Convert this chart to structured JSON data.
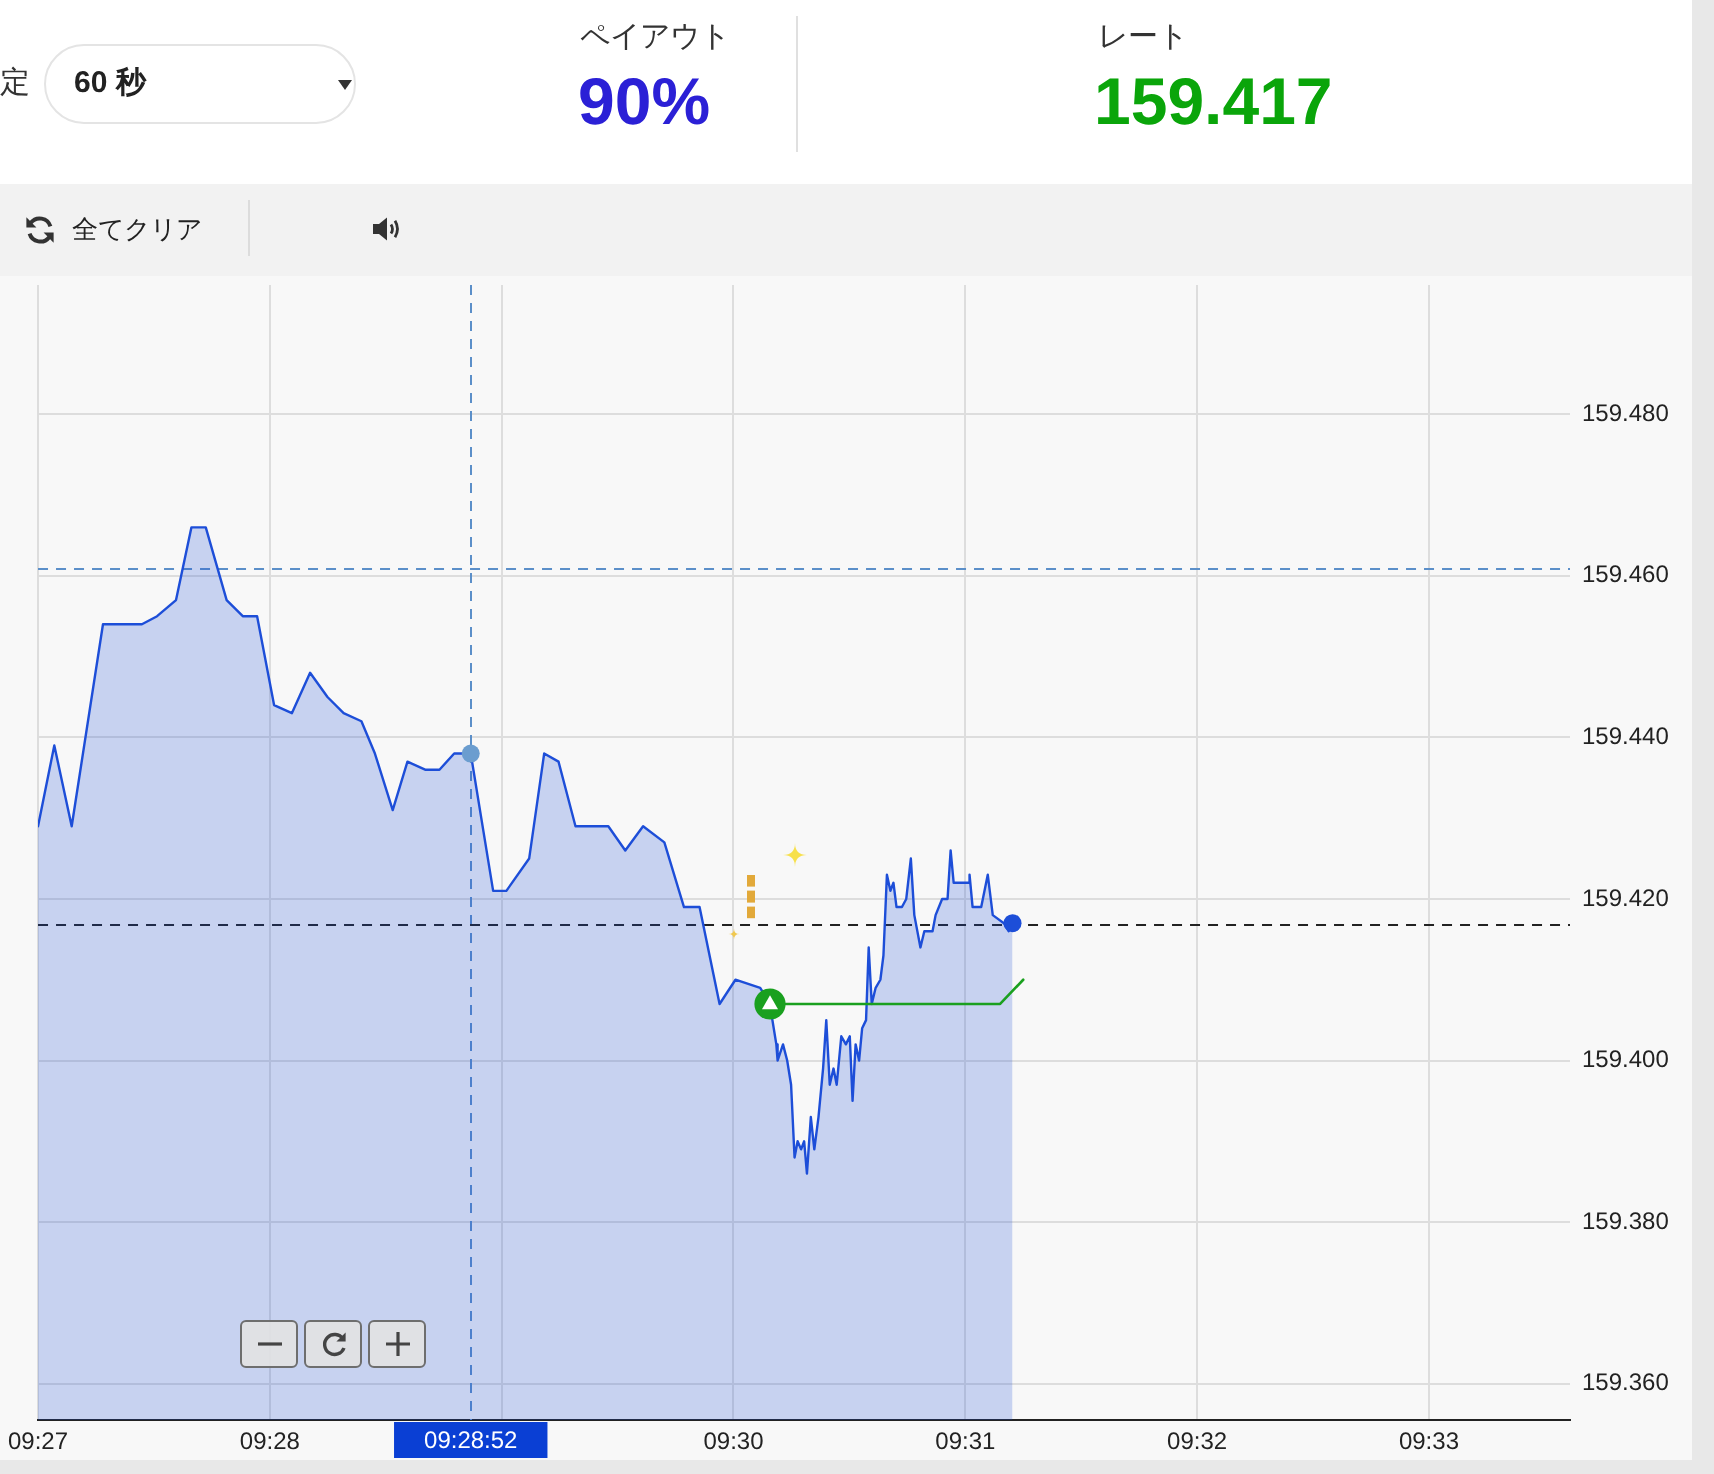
{
  "chart_data": {
    "type": "area",
    "annotations": [
      "定",
      "60 秒",
      "ペイアウト",
      "90%",
      "レート",
      "159.417",
      "全てクリア"
    ],
    "series": [
      {
        "color": "#1d4ed8",
        "x": [
          9.45,
          9.45117,
          9.45242,
          9.45467,
          9.45747,
          9.45856,
          9.45992,
          9.46103,
          9.46206,
          9.46356,
          9.46472,
          9.46575,
          9.46697,
          9.46825,
          9.46956,
          9.47081,
          9.47197,
          9.47325,
          9.47422,
          9.4755,
          9.47656,
          9.47783,
          9.47886,
          9.47992,
          9.48111,
          9.48272,
          9.48367,
          9.48531,
          9.48639,
          9.48742,
          9.48864,
          9.491,
          9.49222,
          9.4935,
          9.49503,
          9.49644,
          9.49756,
          9.499,
          9.50014,
          9.50192,
          9.50261,
          9.50308,
          9.50317,
          9.50356,
          9.50386,
          9.50414,
          9.50439,
          9.50461,
          9.50486,
          9.50508,
          9.50528,
          9.50556,
          9.50581,
          9.50611,
          9.50644,
          9.50667,
          9.50692,
          9.50719,
          9.50742,
          9.50775,
          9.50808,
          9.50836,
          9.50856,
          9.50878,
          9.50903,
          9.50925,
          9.50953,
          9.50972,
          9.50994,
          9.51022,
          9.51056,
          9.51078,
          9.51103,
          9.51128,
          9.5115,
          9.51172,
          9.51211,
          9.51242,
          9.51275,
          9.513,
          9.51344,
          9.51372,
          9.51431,
          9.51453,
          9.515,
          9.51539,
          9.51561,
          9.51583,
          9.51689,
          9.51697,
          9.51719,
          9.51781,
          9.51828,
          9.51864,
          9.51944,
          9.51978,
          9.52006
        ],
        "values": [
          159.429,
          159.439,
          159.429,
          159.454,
          159.454,
          159.455,
          159.457,
          159.466,
          159.466,
          159.457,
          159.455,
          159.455,
          159.444,
          159.443,
          159.448,
          159.445,
          159.443,
          159.442,
          159.438,
          159.431,
          159.437,
          159.436,
          159.436,
          159.438,
          159.438,
          159.421,
          159.421,
          159.425,
          159.438,
          159.437,
          159.429,
          159.429,
          159.426,
          159.429,
          159.427,
          159.419,
          159.419,
          159.407,
          159.41,
          159.409,
          159.407,
          159.402,
          159.4,
          159.402,
          159.4,
          159.397,
          159.388,
          159.39,
          159.389,
          159.39,
          159.386,
          159.393,
          159.389,
          159.393,
          159.399,
          159.405,
          159.397,
          159.399,
          159.397,
          159.403,
          159.402,
          159.403,
          159.395,
          159.402,
          159.4,
          159.404,
          159.405,
          159.414,
          159.407,
          159.409,
          159.41,
          159.413,
          159.423,
          159.421,
          159.422,
          159.419,
          159.419,
          159.42,
          159.425,
          159.418,
          159.414,
          159.416,
          159.416,
          159.418,
          159.42,
          159.42,
          159.426,
          159.422,
          159.422,
          159.423,
          159.419,
          159.419,
          159.423,
          159.418,
          159.417,
          159.416,
          159.417
        ]
      },
      {
        "type": "line",
        "color": "#1aa01f",
        "x": [
          9.50261,
          9.51917,
          9.52083
        ],
        "values": [
          159.407,
          159.407,
          159.41
        ]
      },
      {
        "type": "scatter",
        "color": "#6b9dcf",
        "marker": "circle",
        "x": [
          9.48111
        ],
        "values": [
          159.438
        ]
      },
      {
        "type": "scatter",
        "color": "#1d4ed8",
        "marker": "circle",
        "x": [
          9.52006
        ],
        "values": [
          159.417
        ]
      }
    ],
    "xlim": [
      9.45,
      9.56014
    ],
    "xticks": [
      {
        "value": 9.45,
        "label": "09:27"
      },
      {
        "value": 9.466667,
        "label": "09:28"
      },
      {
        "value": 9.483333,
        "label": null
      },
      {
        "value": 9.5,
        "label": "09:30"
      },
      {
        "value": 9.516667,
        "label": "09:31"
      },
      {
        "value": 9.533333,
        "label": "09:32"
      },
      {
        "value": 9.55,
        "label": "09:33"
      }
    ],
    "ylim": [
      159.3555,
      159.496
    ],
    "yticks": [
      {
        "value": 159.36,
        "label": "159.360"
      },
      {
        "value": 159.38,
        "label": "159.380"
      },
      {
        "value": 159.4,
        "label": "159.400"
      },
      {
        "value": 159.42,
        "label": "159.420"
      },
      {
        "value": 159.44,
        "label": "159.440"
      },
      {
        "value": 159.46,
        "label": "159.460"
      },
      {
        "value": 159.48,
        "label": "159.480"
      }
    ],
    "grid": true,
    "ref_lines": [
      {
        "axis": "x",
        "value": 9.48111,
        "label": "09:28:52",
        "color": "#5b8fc9",
        "line_style": "dashed"
      },
      {
        "axis": "y",
        "value": 159.461,
        "color": "#5b8fc9",
        "line_style": "dashed"
      },
      {
        "axis": "y",
        "value": 159.417,
        "color": "#222222",
        "line_style": "dashed"
      }
    ]
  }
}
